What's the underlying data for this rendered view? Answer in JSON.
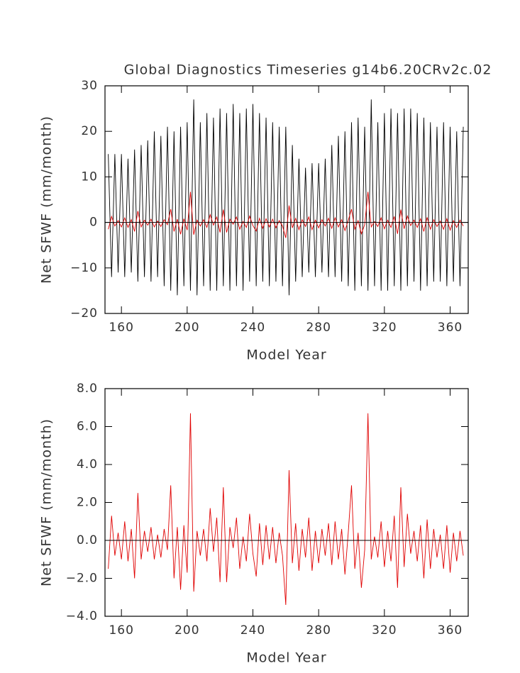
{
  "chart_data": [
    {
      "type": "line",
      "title": "Global Diagnostics Timeseries g14b6.20CRv2c.02",
      "x_label": "Model Year",
      "y_label": "Net SFWF (mm/month)",
      "xlim": [
        150,
        371
      ],
      "xticks": [
        160,
        200,
        240,
        280,
        320,
        360
      ],
      "ylim": [
        -20,
        30
      ],
      "yticks": [
        30,
        20,
        10,
        0,
        {
          "value": -10,
          "label": "−10"
        },
        {
          "value": -20,
          "label": "−20"
        }
      ],
      "x": [
        152,
        154,
        156,
        158,
        160,
        162,
        164,
        166,
        168,
        170,
        172,
        174,
        176,
        178,
        180,
        182,
        184,
        186,
        188,
        190,
        192,
        194,
        196,
        198,
        200,
        202,
        204,
        206,
        208,
        210,
        212,
        214,
        216,
        218,
        220,
        222,
        224,
        226,
        228,
        230,
        232,
        234,
        236,
        238,
        240,
        242,
        244,
        246,
        248,
        250,
        252,
        254,
        256,
        258,
        260,
        262,
        264,
        266,
        268,
        270,
        272,
        274,
        276,
        278,
        280,
        282,
        284,
        286,
        288,
        290,
        292,
        294,
        296,
        298,
        300,
        302,
        304,
        306,
        308,
        310,
        312,
        314,
        316,
        318,
        320,
        322,
        324,
        326,
        328,
        330,
        332,
        334,
        336,
        338,
        340,
        342,
        344,
        346,
        348,
        350,
        352,
        354,
        356,
        358,
        360,
        362,
        364,
        366,
        368
      ],
      "series": [
        {
          "color": "#000000",
          "values": [
            15,
            -12,
            15,
            -11,
            15,
            -12,
            14,
            -11,
            16,
            -13,
            17,
            -12,
            18,
            -13,
            20,
            -12,
            19,
            -14,
            21,
            -15,
            20,
            -16,
            21,
            -14,
            22,
            -15,
            27,
            -16,
            22,
            -14,
            24,
            -15,
            23,
            -15,
            25,
            -14,
            24,
            -15,
            26,
            -14,
            24,
            -15,
            25,
            -13,
            26,
            -14,
            24,
            -13,
            23,
            -14,
            22,
            -13,
            21,
            -14,
            21,
            -16,
            17,
            -13,
            14,
            -12,
            12,
            -11,
            13,
            -12,
            13,
            -11,
            14,
            -12,
            17,
            -12,
            19,
            -13,
            20,
            -14,
            22,
            -15,
            23,
            -14,
            21,
            -15,
            27,
            -14,
            22,
            -15,
            24,
            -15,
            25,
            -14,
            24,
            -15,
            25,
            -14,
            25,
            -13,
            24,
            -15,
            23,
            -14,
            22,
            -13,
            21,
            -13,
            22,
            -14,
            21,
            -13,
            20,
            -14,
            21
          ]
        },
        {
          "color": "#e00000",
          "values": [
            -1.5,
            1.3,
            -0.8,
            0.4,
            -1.0,
            1.0,
            -1.1,
            0.6,
            -2.0,
            2.5,
            -1.0,
            0.5,
            -0.6,
            0.7,
            -1.0,
            0.3,
            -0.9,
            0.6,
            -0.5,
            2.9,
            -2.0,
            0.7,
            -2.6,
            0.8,
            -1.7,
            6.7,
            -2.7,
            0.5,
            -0.8,
            0.6,
            -1.1,
            1.7,
            -0.6,
            1.2,
            -2.2,
            2.8,
            -2.2,
            0.7,
            -0.4,
            1.2,
            -1.5,
            0.2,
            -1.1,
            1.4,
            -0.7,
            -1.9,
            0.9,
            -1.3,
            0.8,
            -1.0,
            0.7,
            -1.2,
            0.4,
            -0.8,
            -3.4,
            3.7,
            -1.2,
            0.9,
            -1.6,
            0.6,
            -0.9,
            1.2,
            -1.6,
            0.5,
            -1.2,
            0.6,
            -0.8,
            0.9,
            -1.3,
            1.0,
            -1.0,
            0.6,
            -1.8,
            0.4,
            2.9,
            -1.5,
            0.4,
            -2.5,
            -0.5,
            6.7,
            -1.0,
            0.2,
            -0.9,
            1.0,
            -1.4,
            0.5,
            -1.1,
            1.3,
            -2.5,
            2.8,
            -1.4,
            1.4,
            -0.7,
            0.5,
            -1.1,
            0.8,
            -2.0,
            1.1,
            -1.5,
            0.6,
            -0.9,
            0.3,
            -1.5,
            0.8,
            -1.7,
            0.4,
            -1.1,
            0.5,
            -0.8
          ]
        }
      ]
    },
    {
      "type": "line",
      "x_label": "Model Year",
      "y_label": "Net SFWF (mm/month)",
      "xlim": [
        150,
        371
      ],
      "xticks": [
        160,
        200,
        240,
        280,
        320,
        360
      ],
      "ylim": [
        -4,
        8
      ],
      "yticks": [
        {
          "value": 8,
          "label": "8.0"
        },
        {
          "value": 6,
          "label": "6.0"
        },
        {
          "value": 4,
          "label": "4.0"
        },
        {
          "value": 2,
          "label": "2.0"
        },
        {
          "value": 0,
          "label": "0.0"
        },
        {
          "value": -2,
          "label": "−2.0"
        },
        {
          "value": -4,
          "label": "−4.0"
        }
      ],
      "x": [
        152,
        154,
        156,
        158,
        160,
        162,
        164,
        166,
        168,
        170,
        172,
        174,
        176,
        178,
        180,
        182,
        184,
        186,
        188,
        190,
        192,
        194,
        196,
        198,
        200,
        202,
        204,
        206,
        208,
        210,
        212,
        214,
        216,
        218,
        220,
        222,
        224,
        226,
        228,
        230,
        232,
        234,
        236,
        238,
        240,
        242,
        244,
        246,
        248,
        250,
        252,
        254,
        256,
        258,
        260,
        262,
        264,
        266,
        268,
        270,
        272,
        274,
        276,
        278,
        280,
        282,
        284,
        286,
        288,
        290,
        292,
        294,
        296,
        298,
        300,
        302,
        304,
        306,
        308,
        310,
        312,
        314,
        316,
        318,
        320,
        322,
        324,
        326,
        328,
        330,
        332,
        334,
        336,
        338,
        340,
        342,
        344,
        346,
        348,
        350,
        352,
        354,
        356,
        358,
        360,
        362,
        364,
        366,
        368
      ],
      "series": [
        {
          "color": "#e00000",
          "values": [
            -1.5,
            1.3,
            -0.8,
            0.4,
            -1.0,
            1.0,
            -1.1,
            0.6,
            -2.0,
            2.5,
            -1.0,
            0.5,
            -0.6,
            0.7,
            -1.0,
            0.3,
            -0.9,
            0.6,
            -0.5,
            2.9,
            -2.0,
            0.7,
            -2.6,
            0.8,
            -1.7,
            6.7,
            -2.7,
            0.5,
            -0.8,
            0.6,
            -1.1,
            1.7,
            -0.6,
            1.2,
            -2.2,
            2.8,
            -2.2,
            0.7,
            -0.4,
            1.2,
            -1.5,
            0.2,
            -1.1,
            1.4,
            -0.7,
            -1.9,
            0.9,
            -1.3,
            0.8,
            -1.0,
            0.7,
            -1.2,
            0.4,
            -0.8,
            -3.4,
            3.7,
            -1.2,
            0.9,
            -1.6,
            0.6,
            -0.9,
            1.2,
            -1.6,
            0.5,
            -1.2,
            0.6,
            -0.8,
            0.9,
            -1.3,
            1.0,
            -1.0,
            0.6,
            -1.8,
            0.4,
            2.9,
            -1.5,
            0.4,
            -2.5,
            -0.5,
            6.7,
            -1.0,
            0.2,
            -0.9,
            1.0,
            -1.4,
            0.5,
            -1.1,
            1.3,
            -2.5,
            2.8,
            -1.4,
            1.4,
            -0.7,
            0.5,
            -1.1,
            0.8,
            -2.0,
            1.1,
            -1.5,
            0.6,
            -0.9,
            0.3,
            -1.5,
            0.8,
            -1.7,
            0.4,
            -1.1,
            0.5,
            -0.8
          ]
        }
      ]
    }
  ]
}
